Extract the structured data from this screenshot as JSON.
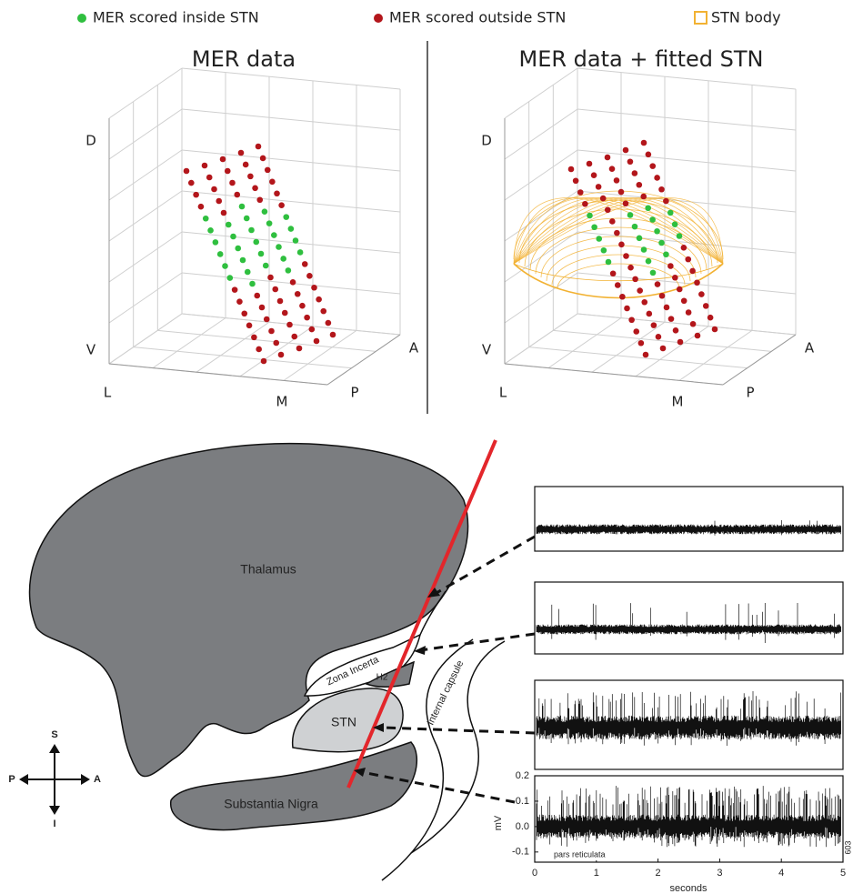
{
  "legend": {
    "items": [
      {
        "label": "MER scored inside STN",
        "color": "#2fbf3f"
      },
      {
        "label": "MER scored outside STN",
        "color": "#b3161b"
      },
      {
        "label": "STN body",
        "color": "#f2b233"
      }
    ]
  },
  "panels": [
    {
      "title": "MER data",
      "axis_labels": {
        "dorsal": "D",
        "ventral": "V",
        "lateral": "L",
        "medial": "M",
        "anterior": "A",
        "posterior": "P"
      }
    },
    {
      "title": "MER data + fitted STN",
      "axis_labels": {
        "dorsal": "D",
        "ventral": "V",
        "lateral": "L",
        "medial": "M",
        "anterior": "A",
        "posterior": "P"
      }
    }
  ],
  "anatomy": {
    "thalamus": "Thalamus",
    "zona_incerta": "Zona Incerta",
    "h2": "H2",
    "stn": "STN",
    "internal_capsule": "Internal capsule",
    "substantia_nigra": "Substantia Nigra",
    "compass": {
      "superior": "S",
      "inferior": "I",
      "posterior": "P",
      "anterior": "A"
    }
  },
  "traces": {
    "ylabel": "mV",
    "xlabel": "seconds",
    "annotation": "pars reticulata",
    "side_label": "603",
    "xlim": [
      0,
      5
    ],
    "xticks": [
      0,
      1,
      2,
      3,
      4,
      5
    ],
    "ylim": [
      -0.14,
      0.2
    ],
    "yticks": [
      0.2,
      0.1,
      {
        "value": 0,
        "label": "0.0"
      },
      -0.1
    ]
  }
}
